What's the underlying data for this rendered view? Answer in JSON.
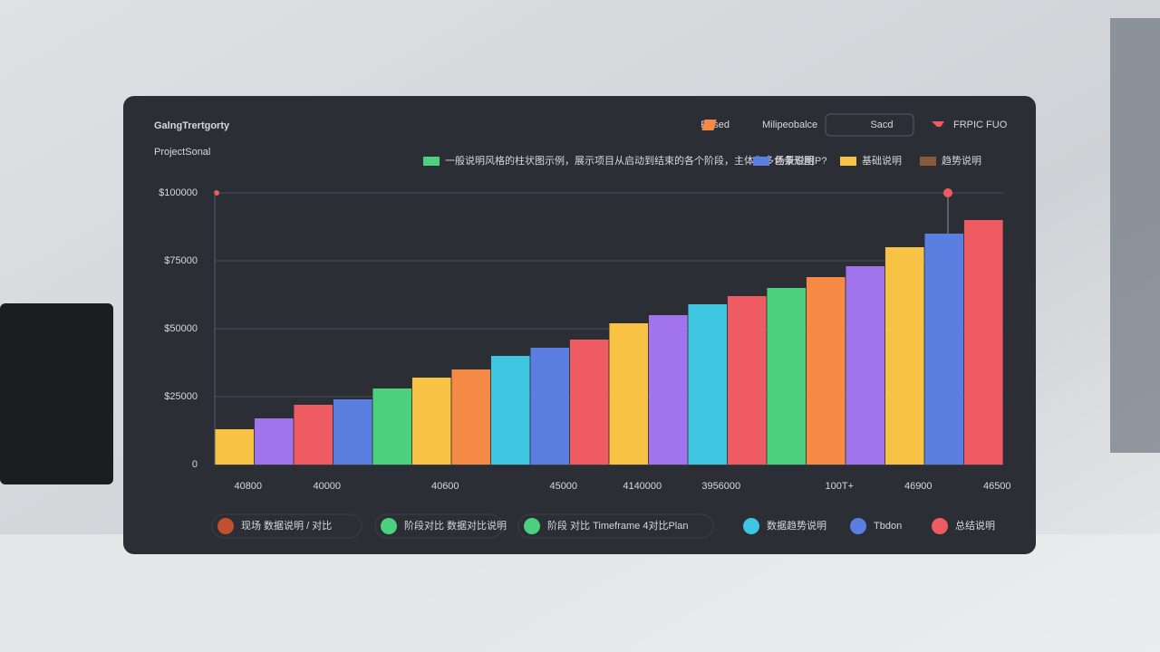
{
  "header": {
    "title": "GalngTrertgorty",
    "subtitle": "ProjectSonal",
    "controls": [
      "Resed",
      "Milipeobalce",
      "Sacd",
      "FRPIC FUO"
    ]
  },
  "chart_data": {
    "type": "bar",
    "legend": [
      {
        "name": "一般说明风格的柱状图示例，展示项目从启动到结束的各个阶段，主体为多色条形图",
        "color": "#4cd07d"
      },
      {
        "name": "场景说明P?",
        "color": "#5a7fe0"
      },
      {
        "name": "基础说明",
        "color": "#f8c244"
      },
      {
        "name": "趋势说明",
        "color": "#8a5a3c"
      }
    ],
    "categories": [
      "40800",
      null,
      "40000",
      null,
      null,
      "40600",
      null,
      null,
      "45000",
      null,
      "4140000",
      null,
      "3956000",
      null,
      null,
      "100T+",
      null,
      "46900",
      null,
      "46500"
    ],
    "values": [
      13000,
      17000,
      22000,
      24000,
      28000,
      32000,
      35000,
      40000,
      43000,
      46000,
      52000,
      55000,
      59000,
      62000,
      65000,
      69000,
      73000,
      80000,
      85000,
      90000
    ],
    "colors": [
      "#f8c244",
      "#a274ec",
      "#ef5b62",
      "#5a7fe0",
      "#4cd07d",
      "#f8c244",
      "#f58a45",
      "#3ec5e0",
      "#5a7fe0",
      "#ef5b62",
      "#f8c244",
      "#a274ec",
      "#3ec5e0",
      "#ef5b62",
      "#4cd07d",
      "#f58a45",
      "#a274ec",
      "#f8c244",
      "#5a7fe0",
      "#ef5b62"
    ],
    "ylim": [
      0,
      100000
    ],
    "yticks": [
      {
        "value": 0,
        "label": "0"
      },
      {
        "value": 25000,
        "label": "$25000"
      },
      {
        "value": 50000,
        "label": "$50000"
      },
      {
        "value": 75000,
        "label": "$75000"
      },
      {
        "value": 100000,
        "label": "$100000"
      }
    ],
    "grid": true
  },
  "footer_items": [
    {
      "text": "现场 数据说明 / 对比",
      "color": "#c0502f"
    },
    {
      "text": "阶段对比 数据对比说明",
      "color": "#4cd07d"
    },
    {
      "text": "阶段 对比 Timeframe 4对比Plan",
      "color": "#4cd07d"
    },
    {
      "text": "数据趋势说明",
      "color": "#3ec5e0"
    },
    {
      "text": "Tbdon",
      "color": "#5a7fe0"
    },
    {
      "text": "总结说明",
      "color": "#ef5b62"
    }
  ]
}
